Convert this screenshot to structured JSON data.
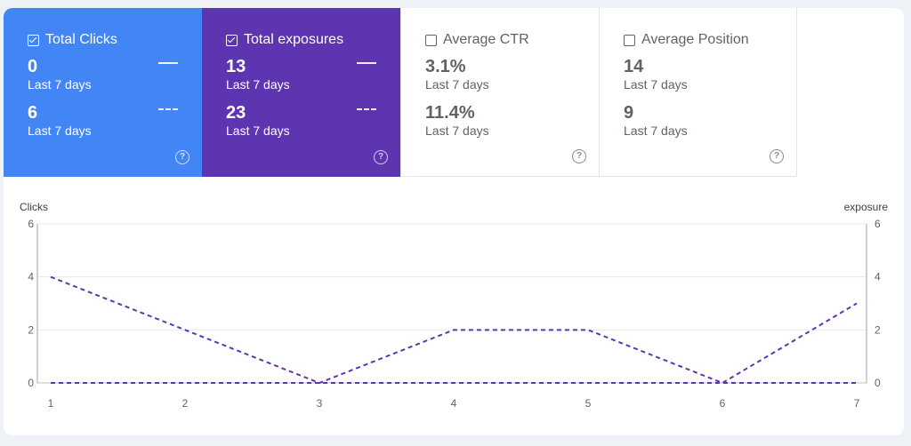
{
  "cards": [
    {
      "title": "Total Clicks",
      "checked": true,
      "color": "#4285f4",
      "metrics": [
        {
          "value": "0",
          "period": "Last 7 days",
          "legend": "solid"
        },
        {
          "value": "6",
          "period": "Last 7 days",
          "legend": "dashed"
        }
      ],
      "help_icon": "question-circle-icon"
    },
    {
      "title": "Total exposures",
      "checked": true,
      "color": "#5e35b1",
      "metrics": [
        {
          "value": "13",
          "period": "Last 7 days",
          "legend": "solid"
        },
        {
          "value": "23",
          "period": "Last 7 days",
          "legend": "dashed"
        }
      ],
      "help_icon": "question-circle-icon"
    },
    {
      "title": "Average CTR",
      "checked": false,
      "metrics": [
        {
          "value": "3.1%",
          "period": "Last 7 days"
        },
        {
          "value": "11.4%",
          "period": "Last 7 days"
        }
      ],
      "help_icon": "question-circle-icon"
    },
    {
      "title": "Average Position",
      "checked": false,
      "metrics": [
        {
          "value": "14",
          "period": "Last 7 days"
        },
        {
          "value": "9",
          "period": "Last 7 days"
        }
      ],
      "help_icon": "question-circle-icon"
    }
  ],
  "chart_data": {
    "type": "line",
    "x": [
      1,
      2,
      3,
      4,
      5,
      6,
      7
    ],
    "ylabel_left": "Clicks",
    "ylabel_right": "exposure",
    "ylim": [
      0,
      6
    ],
    "yticks": [
      0,
      2,
      4,
      6
    ],
    "grid": true,
    "series": [
      {
        "values": [
          0,
          0,
          0,
          0,
          0,
          0,
          0
        ],
        "color": "#4285f4",
        "style": "dashed",
        "axis": "left"
      },
      {
        "values": [
          0,
          0,
          0,
          0,
          0,
          0,
          0
        ],
        "color": "#5e35b1",
        "style": "dashed",
        "axis": "right"
      },
      {
        "values": [
          4,
          2,
          0,
          2,
          2,
          0,
          3
        ],
        "color": "#5e35b1",
        "style": "dashed",
        "axis": "right"
      }
    ]
  }
}
